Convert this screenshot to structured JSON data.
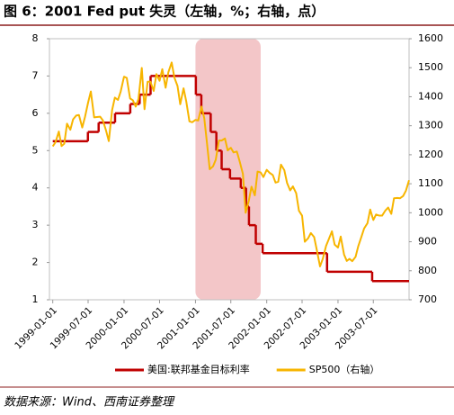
{
  "chart_data": {
    "type": "line",
    "title": "图 6：2001 Fed put 失灵（左轴，%；右轴，点）",
    "source": "数据来源：Wind、西南证券整理",
    "xlim": [
      "1998-12-15",
      "2003-12-31"
    ],
    "xticks": [
      "1999-01-01",
      "1999-07-01",
      "2000-01-01",
      "2000-07-01",
      "2001-01-01",
      "2001-07-01",
      "2002-01-01",
      "2002-07-01",
      "2003-01-01",
      "2003-07-01"
    ],
    "ylim": [
      1,
      8
    ],
    "yticks": [
      1,
      2,
      3,
      4,
      5,
      6,
      7,
      8
    ],
    "y2lim": [
      700,
      1600
    ],
    "y2ticks": [
      700,
      800,
      900,
      1000,
      1100,
      1200,
      1300,
      1400,
      1500,
      1600
    ],
    "shaded_range": [
      "2001-01-01",
      "2001-12-01"
    ],
    "shade_color": "#f3c6c8",
    "series": [
      {
        "name": "美国:联邦基金目标利率",
        "color": "#c00000",
        "step": true,
        "x": [
          "1999-01-01",
          "1999-06-30",
          "1999-08-24",
          "1999-11-16",
          "2000-02-02",
          "2000-03-21",
          "2000-05-16",
          "2001-01-03",
          "2001-01-31",
          "2001-03-20",
          "2001-04-18",
          "2001-05-15",
          "2001-06-27",
          "2001-08-21",
          "2001-09-17",
          "2001-10-02",
          "2001-11-06",
          "2001-12-11",
          "2002-11-06",
          "2003-06-25"
        ],
        "values": [
          5.25,
          5.5,
          5.75,
          6.0,
          6.25,
          6.5,
          7.0,
          6.5,
          6.0,
          5.5,
          5.0,
          4.5,
          4.25,
          4.0,
          3.5,
          3.0,
          2.5,
          2.25,
          1.75,
          1.5
        ]
      },
      {
        "name": "SP500（右轴）",
        "color": "#f7b500",
        "axis": "y2",
        "x": [
          "1999-01-01",
          "1999-01-15",
          "1999-02-01",
          "1999-02-15",
          "1999-03-01",
          "1999-03-15",
          "1999-04-01",
          "1999-04-15",
          "1999-05-01",
          "1999-05-15",
          "1999-06-01",
          "1999-06-15",
          "1999-07-01",
          "1999-07-15",
          "1999-08-01",
          "1999-08-15",
          "1999-09-01",
          "1999-09-15",
          "1999-10-01",
          "1999-10-15",
          "1999-11-01",
          "1999-11-15",
          "1999-12-01",
          "1999-12-15",
          "2000-01-01",
          "2000-01-15",
          "2000-02-01",
          "2000-02-15",
          "2000-03-01",
          "2000-03-15",
          "2000-04-01",
          "2000-04-15",
          "2000-05-01",
          "2000-05-15",
          "2000-06-01",
          "2000-06-15",
          "2000-07-01",
          "2000-07-15",
          "2000-08-01",
          "2000-08-15",
          "2000-09-01",
          "2000-09-15",
          "2000-10-01",
          "2000-10-15",
          "2000-11-01",
          "2000-11-15",
          "2000-12-01",
          "2000-12-15",
          "2001-01-01",
          "2001-01-15",
          "2001-02-01",
          "2001-02-15",
          "2001-03-01",
          "2001-03-15",
          "2001-04-01",
          "2001-04-15",
          "2001-05-01",
          "2001-05-15",
          "2001-06-01",
          "2001-06-15",
          "2001-07-01",
          "2001-07-15",
          "2001-08-01",
          "2001-08-15",
          "2001-09-01",
          "2001-09-15",
          "2001-10-01",
          "2001-10-15",
          "2001-11-01",
          "2001-11-15",
          "2001-12-01",
          "2001-12-15",
          "2002-01-01",
          "2002-01-15",
          "2002-02-01",
          "2002-02-15",
          "2002-03-01",
          "2002-03-15",
          "2002-04-01",
          "2002-04-15",
          "2002-05-01",
          "2002-05-15",
          "2002-06-01",
          "2002-06-15",
          "2002-07-01",
          "2002-07-15",
          "2002-08-01",
          "2002-08-15",
          "2002-09-01",
          "2002-09-15",
          "2002-10-01",
          "2002-10-15",
          "2002-11-01",
          "2002-11-15",
          "2002-12-01",
          "2002-12-15",
          "2003-01-01",
          "2003-01-15",
          "2003-02-01",
          "2003-02-15",
          "2003-03-01",
          "2003-03-15",
          "2003-04-01",
          "2003-04-15",
          "2003-05-01",
          "2003-05-15",
          "2003-06-01",
          "2003-06-15",
          "2003-07-01",
          "2003-07-15",
          "2003-08-01",
          "2003-08-15",
          "2003-09-01",
          "2003-09-15",
          "2003-10-01",
          "2003-10-15",
          "2003-11-01",
          "2003-11-15",
          "2003-12-01",
          "2003-12-15",
          "2003-12-31"
        ],
        "values": [
          1229,
          1243,
          1280,
          1230,
          1238,
          1307,
          1286,
          1322,
          1335,
          1337,
          1294,
          1330,
          1380,
          1418,
          1329,
          1330,
          1331,
          1318,
          1283,
          1247,
          1354,
          1397,
          1389,
          1418,
          1469,
          1465,
          1394,
          1388,
          1366,
          1392,
          1499,
          1357,
          1452,
          1452,
          1420,
          1478,
          1455,
          1495,
          1431,
          1484,
          1518,
          1466,
          1437,
          1374,
          1429,
          1383,
          1315,
          1312,
          1320,
          1318,
          1366,
          1326,
          1240,
          1150,
          1160,
          1183,
          1249,
          1249,
          1256,
          1215,
          1224,
          1208,
          1211,
          1178,
          1134,
          1000,
          1041,
          1090,
          1060,
          1142,
          1139,
          1123,
          1148,
          1138,
          1130,
          1104,
          1107,
          1166,
          1147,
          1103,
          1077,
          1091,
          1067,
          1007,
          990,
          900,
          912,
          930,
          916,
          870,
          815,
          841,
          886,
          909,
          936,
          890,
          880,
          918,
          856,
          834,
          841,
          833,
          848,
          885,
          917,
          946,
          964,
          1011,
          975,
          994,
          990,
          990,
          1008,
          1018,
          996,
          1050,
          1051,
          1050,
          1058,
          1076,
          1112
        ]
      }
    ]
  }
}
